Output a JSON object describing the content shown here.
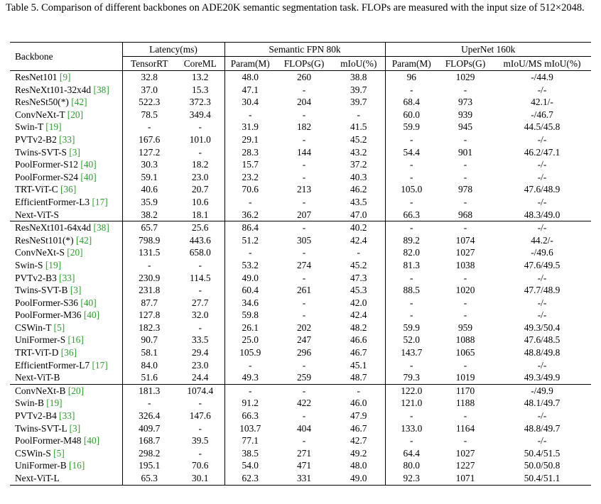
{
  "caption": "Table 5.  Comparison of different backbones on ADE20K semantic segmentation task.  FLOPs are measured with the input size of 512×2048.",
  "headers": {
    "backbone": "Backbone",
    "latency": "Latency(ms)",
    "fpn": "Semantic FPN 80k",
    "upernet": "UperNet 160k",
    "tensorrt": "TensorRT",
    "coreml": "CoreML",
    "fpn_param": "Param(M)",
    "fpn_flops": "FLOPs(G)",
    "fpn_miou": "mIoU(%)",
    "up_param": "Param(M)",
    "up_flops": "FLOPs(G)",
    "up_miou": "mIoU/MS mIoU(%)"
  },
  "groups": [
    {
      "rows": [
        {
          "name": "ResNet101",
          "ref": "[9]",
          "trt": "32.8",
          "coreml": "13.2",
          "fpn_param": "48.0",
          "fpn_flops": "260",
          "fpn_miou": "38.8",
          "up_param": "96",
          "up_flops": "1029",
          "up_miou": "-/44.9"
        },
        {
          "name": "ResNeXt101-32x4d",
          "ref": "[38]",
          "trt": "37.0",
          "coreml": "15.3",
          "fpn_param": "47.1",
          "fpn_flops": "-",
          "fpn_miou": "39.7",
          "up_param": "-",
          "up_flops": "-",
          "up_miou": "-/-"
        },
        {
          "name": "ResNeSt50(*)",
          "ref": "[42]",
          "trt": "522.3",
          "coreml": "372.3",
          "fpn_param": "30.4",
          "fpn_flops": "204",
          "fpn_miou": "39.7",
          "up_param": "68.4",
          "up_flops": "973",
          "up_miou": "42.1/-"
        },
        {
          "name": "ConvNeXt-T",
          "ref": "[20]",
          "trt": "78.5",
          "coreml": "349.4",
          "fpn_param": "-",
          "fpn_flops": "-",
          "fpn_miou": "-",
          "up_param": "60.0",
          "up_flops": "939",
          "up_miou": "-/46.7"
        },
        {
          "name": "Swin-T",
          "ref": "[19]",
          "trt": "-",
          "coreml": "-",
          "fpn_param": "31.9",
          "fpn_flops": "182",
          "fpn_miou": "41.5",
          "up_param": "59.9",
          "up_flops": "945",
          "up_miou": "44.5/45.8"
        },
        {
          "name": "PVTv2-B2",
          "ref": "[33]",
          "trt": "167.6",
          "coreml": "101.0",
          "fpn_param": "29.1",
          "fpn_flops": "-",
          "fpn_miou": "45.2",
          "up_param": "-",
          "up_flops": "-",
          "up_miou": "-/-"
        },
        {
          "name": "Twins-SVT-S",
          "ref": "[3]",
          "trt": "127.2",
          "coreml": "-",
          "fpn_param": "28.3",
          "fpn_flops": "144",
          "fpn_miou": "43.2",
          "up_param": "54.4",
          "up_flops": "901",
          "up_miou": "46.2/47.1"
        },
        {
          "name": "PoolFormer-S12",
          "ref": "[40]",
          "trt": "30.3",
          "coreml": "18.2",
          "fpn_param": "15.7",
          "fpn_flops": "-",
          "fpn_miou": "37.2",
          "up_param": "-",
          "up_flops": "-",
          "up_miou": "-/-"
        },
        {
          "name": "PoolFormer-S24",
          "ref": "[40]",
          "trt": "59.1",
          "coreml": "23.0",
          "fpn_param": "23.2",
          "fpn_flops": "-",
          "fpn_miou": "40.3",
          "up_param": "-",
          "up_flops": "-",
          "up_miou": "-/-"
        },
        {
          "name": "TRT-ViT-C",
          "ref": "[36]",
          "trt": "40.6",
          "coreml": "20.7",
          "fpn_param": "70.6",
          "fpn_flops": "213",
          "fpn_miou": "46.2",
          "up_param": "105.0",
          "up_flops": "978",
          "up_miou": "47.6/48.9"
        },
        {
          "name": "EfficientFormer-L3",
          "ref": "[17]",
          "trt": "35.9",
          "coreml": "10.6",
          "fpn_param": "-",
          "fpn_flops": "-",
          "fpn_miou": "43.5",
          "up_param": "-",
          "up_flops": "-",
          "up_miou": "-/-"
        },
        {
          "name": "Next-ViT-S",
          "ref": "",
          "bold": true,
          "trt": "38.2",
          "coreml": "18.1",
          "fpn_param": "36.2",
          "fpn_flops": "207",
          "fpn_miou": "47.0",
          "up_param": "66.3",
          "up_flops": "968",
          "up_miou": "48.3/49.0"
        }
      ]
    },
    {
      "rows": [
        {
          "name": "ResNeXt101-64x4d",
          "ref": "[38]",
          "trt": "65.7",
          "coreml": "25.6",
          "fpn_param": "86.4",
          "fpn_flops": "-",
          "fpn_miou": "40.2",
          "up_param": "-",
          "up_flops": "-",
          "up_miou": "-/-"
        },
        {
          "name": "ResNeSt101(*)",
          "ref": "[42]",
          "trt": "798.9",
          "coreml": "443.6",
          "fpn_param": "51.2",
          "fpn_flops": "305",
          "fpn_miou": "42.4",
          "up_param": "89.2",
          "up_flops": "1074",
          "up_miou": "44.2/-"
        },
        {
          "name": "ConvNeXt-S",
          "ref": "[20]",
          "trt": "131.5",
          "coreml": "658.0",
          "fpn_param": "-",
          "fpn_flops": "-",
          "fpn_miou": "-",
          "up_param": "82.0",
          "up_flops": "1027",
          "up_miou": "-/49.6"
        },
        {
          "name": "Swin-S",
          "ref": "[19]",
          "trt": "-",
          "coreml": "-",
          "fpn_param": "53.2",
          "fpn_flops": "274",
          "fpn_miou": "45.2",
          "up_param": "81.3",
          "up_flops": "1038",
          "up_miou": "47.6/49.5"
        },
        {
          "name": "PVTv2-B3",
          "ref": "[33]",
          "trt": "230.9",
          "coreml": "114.5",
          "fpn_param": "49.0",
          "fpn_flops": "-",
          "fpn_miou": "47.3",
          "up_param": "-",
          "up_flops": "-",
          "up_miou": "-/-"
        },
        {
          "name": "Twins-SVT-B",
          "ref": "[3]",
          "trt": "231.8",
          "coreml": "-",
          "fpn_param": "60.4",
          "fpn_flops": "261",
          "fpn_miou": "45.3",
          "up_param": "88.5",
          "up_flops": "1020",
          "up_miou": "47.7/48.9"
        },
        {
          "name": "PoolFormer-S36",
          "ref": "[40]",
          "trt": "87.7",
          "coreml": "27.7",
          "fpn_param": "34.6",
          "fpn_flops": "-",
          "fpn_miou": "42.0",
          "up_param": "-",
          "up_flops": "-",
          "up_miou": "-/-"
        },
        {
          "name": "PoolFormer-M36",
          "ref": "[40]",
          "trt": "127.8",
          "coreml": "32.0",
          "fpn_param": "59.8",
          "fpn_flops": "-",
          "fpn_miou": "42.4",
          "up_param": "-",
          "up_flops": "-",
          "up_miou": "-/-"
        },
        {
          "name": "CSWin-T",
          "ref": "[5]",
          "trt": "182.3",
          "coreml": "-",
          "fpn_param": "26.1",
          "fpn_flops": "202",
          "fpn_miou": "48.2",
          "up_param": "59.9",
          "up_flops": "959",
          "up_miou": "49.3/50.4"
        },
        {
          "name": "UniFormer-S",
          "ref": "[16]",
          "trt": "90.7",
          "coreml": "33.5",
          "fpn_param": "25.0",
          "fpn_flops": "247",
          "fpn_miou": "46.6",
          "up_param": "52.0",
          "up_flops": "1088",
          "up_miou": "47.6/48.5"
        },
        {
          "name": "TRT-ViT-D",
          "ref": "[36]",
          "trt": "58.1",
          "coreml": "29.4",
          "fpn_param": "105.9",
          "fpn_flops": "296",
          "fpn_miou": "46.7",
          "up_param": "143.7",
          "up_flops": "1065",
          "up_miou": "48.8/49.8"
        },
        {
          "name": "EfficientFormer-L7",
          "ref": "[17]",
          "trt": "84.0",
          "coreml": "23.0",
          "fpn_param": "-",
          "fpn_flops": "-",
          "fpn_miou": "45.1",
          "up_param": "-",
          "up_flops": "-",
          "up_miou": "-/-"
        },
        {
          "name": "Next-ViT-B",
          "ref": "",
          "bold": true,
          "trt": "51.6",
          "coreml": "24.4",
          "fpn_param": "49.3",
          "fpn_flops": "259",
          "fpn_miou": "48.7",
          "up_param": "79.3",
          "up_flops": "1019",
          "up_miou": "49.3/49.9"
        }
      ]
    },
    {
      "rows": [
        {
          "name": "ConvNeXt-B",
          "ref": "[20]",
          "trt": "181.3",
          "coreml": "1074.4",
          "fpn_param": "-",
          "fpn_flops": "-",
          "fpn_miou": "-",
          "up_param": "122.0",
          "up_flops": "1170",
          "up_miou": "-/49.9"
        },
        {
          "name": "Swin-B",
          "ref": "[19]",
          "trt": "-",
          "coreml": "-",
          "fpn_param": "91.2",
          "fpn_flops": "422",
          "fpn_miou": "46.0",
          "up_param": "121.0",
          "up_flops": "1188",
          "up_miou": "48.1/49.7"
        },
        {
          "name": "PVTv2-B4",
          "ref": "[33]",
          "trt": "326.4",
          "coreml": "147.6",
          "fpn_param": "66.3",
          "fpn_flops": "-",
          "fpn_miou": "47.9",
          "up_param": "-",
          "up_flops": "-",
          "up_miou": "-/-"
        },
        {
          "name": "Twins-SVT-L",
          "ref": "[3]",
          "trt": "409.7",
          "coreml": "-",
          "fpn_param": "103.7",
          "fpn_flops": "404",
          "fpn_miou": "46.7",
          "up_param": "133.0",
          "up_flops": "1164",
          "up_miou": "48.8/49.7"
        },
        {
          "name": "PoolFormer-M48",
          "ref": "[40]",
          "trt": "168.7",
          "coreml": "39.5",
          "fpn_param": "77.1",
          "fpn_flops": "-",
          "fpn_miou": "42.7",
          "up_param": "-",
          "up_flops": "-",
          "up_miou": "-/-"
        },
        {
          "name": "CSWin-S",
          "ref": "[5]",
          "trt": "298.2",
          "coreml": "-",
          "fpn_param": "38.5",
          "fpn_flops": "271",
          "fpn_miou": "49.2",
          "up_param": "64.4",
          "up_flops": "1027",
          "up_miou": "50.4/51.5"
        },
        {
          "name": "UniFormer-B",
          "ref": "[16]",
          "trt": "195.1",
          "coreml": "70.6",
          "fpn_param": "54.0",
          "fpn_flops": "471",
          "fpn_miou": "48.0",
          "up_param": "80.0",
          "up_flops": "1227",
          "up_miou": "50.0/50.8"
        },
        {
          "name": "Next-ViT-L",
          "ref": "",
          "bold": true,
          "trt": "65.3",
          "coreml": "30.1",
          "fpn_param": "62.3",
          "fpn_flops": "331",
          "fpn_miou": "49.0",
          "up_param": "92.3",
          "up_flops": "1071",
          "up_miou": "50.4/51.1"
        }
      ]
    }
  ]
}
